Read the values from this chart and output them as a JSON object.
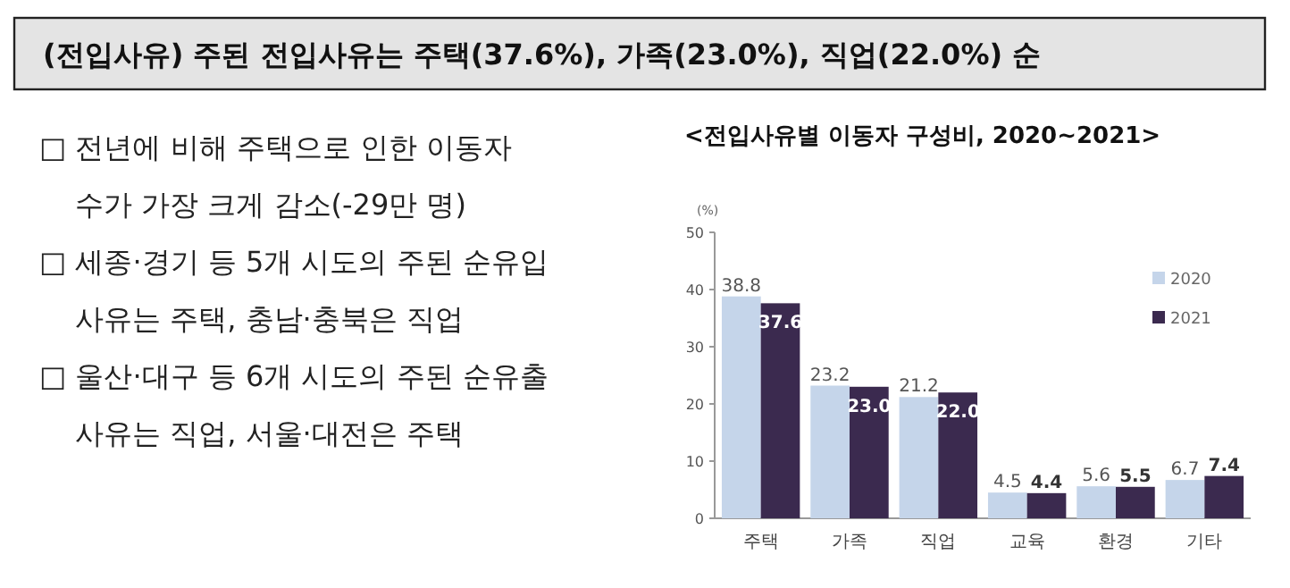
{
  "chart_data": {
    "type": "bar",
    "title": "<전입사유별 이동자 구성비, 2020~2021>",
    "ylabel": "(%)",
    "categories": [
      "주택",
      "가족",
      "직업",
      "교육",
      "환경",
      "기타"
    ],
    "series": [
      {
        "name": "2020",
        "color": "#c5d5ea",
        "values": [
          38.8,
          23.2,
          21.2,
          4.5,
          5.6,
          6.7
        ],
        "value_labels": [
          "38.8",
          "23.2",
          "21.2",
          "4.5",
          "5.6",
          "6.7"
        ]
      },
      {
        "name": "2021",
        "color": "#3b2a4f",
        "values": [
          37.6,
          23.0,
          22.0,
          4.4,
          5.5,
          7.4
        ],
        "value_labels": [
          "37.6",
          "23.0",
          "22.0",
          "4.4",
          "5.5",
          "7.4"
        ]
      }
    ],
    "ylim": [
      0,
      50
    ],
    "yticks": [
      0,
      10,
      20,
      30,
      40,
      50
    ],
    "legend": "right",
    "annotations": [
      "(전입사유) 주된 전입사유는 주택(37.6%), 가족(23.0%), 직업(22.0%) 순",
      "□ 전년에 비해 주택으로 인한 이동자",
      "수가 가장 크게 감소(-29만 명)",
      "□ 세종·경기 등 5개 시도의 주된 순유입",
      "사유는 주택, 충남·충북은 직업",
      "□ 울산·대구 등 6개 시도의 주된 순유출",
      "사유는 직업, 서울·대전은 주택"
    ]
  }
}
